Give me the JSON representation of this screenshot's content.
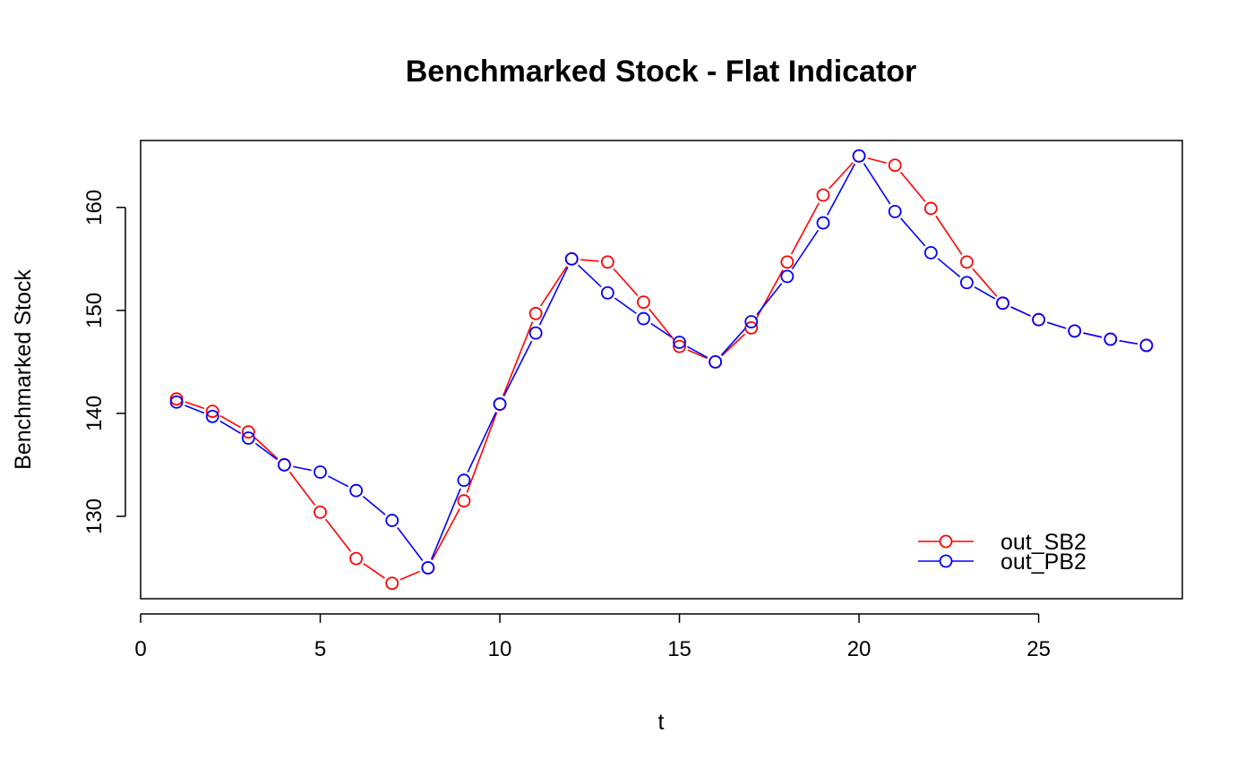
{
  "chart_data": {
    "type": "line",
    "title": "Benchmarked Stock - Flat Indicator",
    "xlabel": "t",
    "ylabel": "Benchmarked Stock",
    "xlim": [
      0,
      29
    ],
    "ylim": [
      122,
      166.5
    ],
    "x_ticks": [
      0,
      5,
      10,
      15,
      20,
      25
    ],
    "y_ticks": [
      130,
      140,
      150,
      160
    ],
    "x_tick_labels": [
      "0",
      "5",
      "10",
      "15",
      "20",
      "25"
    ],
    "y_tick_labels": [
      "130",
      "140",
      "150",
      "160"
    ],
    "grid": false,
    "legend_position": "bottom-right",
    "x": [
      1,
      2,
      3,
      4,
      5,
      6,
      7,
      8,
      9,
      10,
      11,
      12,
      13,
      14,
      15,
      16,
      17,
      18,
      19,
      20,
      21,
      22,
      23,
      24,
      25,
      26,
      27,
      28
    ],
    "series": [
      {
        "name": "out_SB2",
        "color": "#ff0000",
        "marker": "circle",
        "values": [
          141.4,
          140.2,
          138.2,
          135.0,
          130.4,
          125.9,
          123.5,
          125.0,
          131.5,
          140.9,
          149.7,
          155.0,
          154.7,
          150.8,
          146.5,
          145.0,
          148.3,
          154.7,
          161.2,
          165.0,
          164.1,
          159.9,
          154.7,
          150.7,
          149.1,
          148.0,
          147.2,
          146.6
        ]
      },
      {
        "name": "out_PB2",
        "color": "#0000ff",
        "marker": "circle",
        "values": [
          141.1,
          139.7,
          137.6,
          135.0,
          134.3,
          132.5,
          129.6,
          125.0,
          133.5,
          140.9,
          147.8,
          155.0,
          151.7,
          149.2,
          146.9,
          145.0,
          148.9,
          153.3,
          158.5,
          165.0,
          159.6,
          155.6,
          152.7,
          150.7,
          149.1,
          148.0,
          147.2,
          146.6
        ]
      }
    ]
  }
}
